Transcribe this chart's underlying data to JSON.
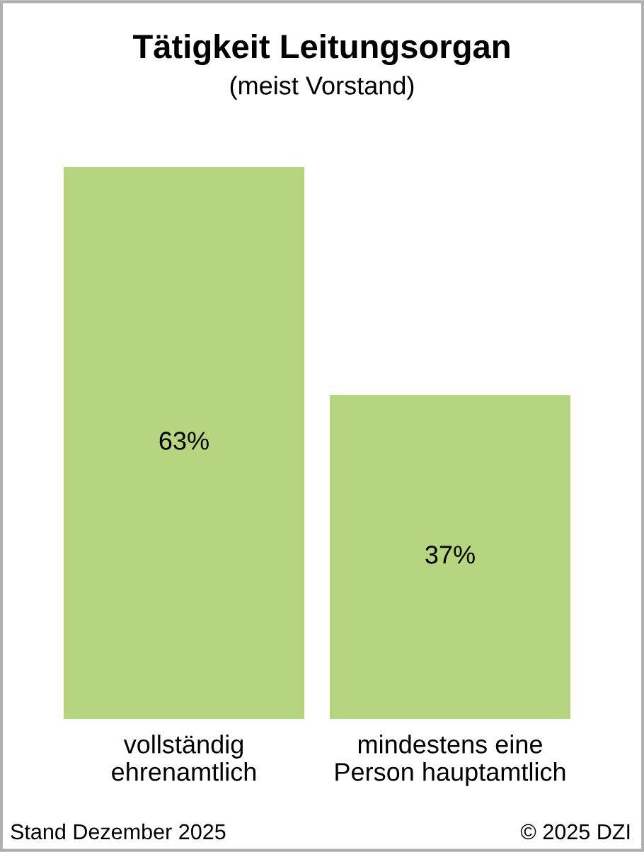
{
  "chart_data": {
    "type": "bar",
    "title": "Tätigkeit Leitungsorgan",
    "subtitle": "(meist Vorstand)",
    "categories": [
      "vollständig\nehrenamtlich",
      "mindestens eine\nPerson hauptamtlich"
    ],
    "values": [
      63,
      37
    ],
    "value_labels": [
      "63%",
      "37%"
    ],
    "color": "#b5d67f",
    "annotations": [
      "Stand Dezember 2025",
      "© 2025 DZI"
    ]
  }
}
